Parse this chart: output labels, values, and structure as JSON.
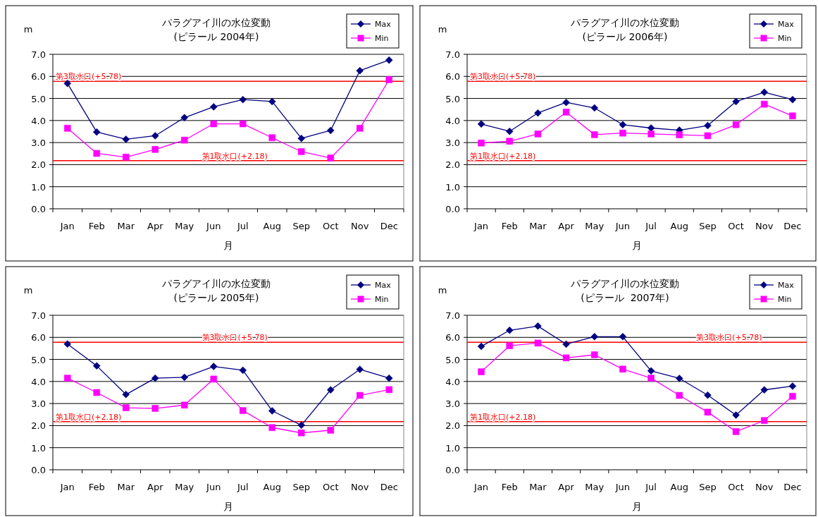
{
  "chart_data": [
    {
      "type": "line",
      "title": "パラグアイ川の水位変動",
      "subtitle": "(ピラール 2004年)",
      "xlabel": "月",
      "ylabel": "m",
      "categories": [
        "Jan",
        "Feb",
        "Mar",
        "Apr",
        "May",
        "Jun",
        "Jul",
        "Aug",
        "Sep",
        "Oct",
        "Nov",
        "Dec"
      ],
      "series": [
        {
          "name": "Max",
          "color": "#000080",
          "marker": "diamond",
          "values": [
            5.68,
            3.48,
            3.15,
            3.31,
            4.13,
            4.62,
            4.95,
            4.86,
            3.19,
            3.55,
            6.26,
            6.74
          ]
        },
        {
          "name": "Min",
          "color": "#ff00ff",
          "marker": "square",
          "values": [
            3.65,
            2.51,
            2.34,
            2.69,
            3.11,
            3.85,
            3.85,
            3.22,
            2.59,
            2.3,
            3.65,
            5.85
          ]
        }
      ],
      "ylim": [
        0,
        7
      ],
      "yticks": [
        {
          "value": 0,
          "label": "0.0"
        },
        {
          "value": 1,
          "label": "1.0"
        },
        {
          "value": 2,
          "label": "2.0"
        },
        {
          "value": 3,
          "label": "3.0"
        },
        {
          "value": 4,
          "label": "4.0"
        },
        {
          "value": 5,
          "label": "5.0"
        },
        {
          "value": 6,
          "label": "6.0"
        },
        {
          "value": 7,
          "label": "7.0"
        }
      ],
      "grid": "y",
      "legend": "top right",
      "ref_lines": [
        {
          "axis": "y",
          "value": 5.78,
          "label": "第3取水口(+5.78)",
          "color": "#ff0000"
        },
        {
          "axis": "y",
          "value": 2.18,
          "label": "第1取水口(+2.18)",
          "color": "#ff0000"
        }
      ]
    },
    {
      "type": "line",
      "title": "パラグアイ川の水位変動",
      "subtitle": "(ピラール 2006年)",
      "xlabel": "月",
      "ylabel": "m",
      "categories": [
        "Jan",
        "Feb",
        "Mar",
        "Apr",
        "May",
        "Jun",
        "Jul",
        "Aug",
        "Sep",
        "Oct",
        "Nov",
        "Dec"
      ],
      "series": [
        {
          "name": "Max",
          "color": "#000080",
          "marker": "diamond",
          "values": [
            3.84,
            3.51,
            4.34,
            4.82,
            4.57,
            3.81,
            3.66,
            3.56,
            3.77,
            4.86,
            5.28,
            4.95
          ]
        },
        {
          "name": "Min",
          "color": "#ff00ff",
          "marker": "square",
          "values": [
            2.98,
            3.06,
            3.39,
            4.38,
            3.36,
            3.43,
            3.39,
            3.35,
            3.31,
            3.81,
            4.74,
            4.21
          ]
        }
      ],
      "ylim": [
        0,
        7
      ],
      "yticks": [
        {
          "value": 0,
          "label": "0.0"
        },
        {
          "value": 1,
          "label": "1.0"
        },
        {
          "value": 2,
          "label": "2.0"
        },
        {
          "value": 3,
          "label": "3.0"
        },
        {
          "value": 4,
          "label": "4.0"
        },
        {
          "value": 5,
          "label": "5.0"
        },
        {
          "value": 6,
          "label": "6.0"
        },
        {
          "value": 7,
          "label": "7.0"
        }
      ],
      "grid": "y",
      "legend": "top right",
      "ref_lines": [
        {
          "axis": "y",
          "value": 5.78,
          "label": "第3取水口(+5.78)",
          "color": "#ff0000"
        },
        {
          "axis": "y",
          "value": 2.18,
          "label": "第1取水口(+2.18)",
          "color": "#ff0000"
        }
      ]
    },
    {
      "type": "line",
      "title": "パラグアイ川の水位変動",
      "subtitle": "(ピラール 2005年)",
      "xlabel": "月",
      "ylabel": "m",
      "categories": [
        "Jan",
        "Feb",
        "Mar",
        "Apr",
        "May",
        "Jun",
        "Jul",
        "Aug",
        "Sep",
        "Oct",
        "Nov",
        "Dec"
      ],
      "series": [
        {
          "name": "Max",
          "color": "#000080",
          "marker": "diamond",
          "values": [
            5.7,
            4.71,
            3.41,
            4.15,
            4.19,
            4.68,
            4.51,
            2.67,
            2.02,
            3.62,
            4.55,
            4.15
          ]
        },
        {
          "name": "Min",
          "color": "#ff00ff",
          "marker": "square",
          "values": [
            4.15,
            3.5,
            2.81,
            2.78,
            2.93,
            4.11,
            2.68,
            1.91,
            1.67,
            1.79,
            3.37,
            3.63
          ]
        }
      ],
      "ylim": [
        0,
        7
      ],
      "yticks": [
        {
          "value": 0,
          "label": "0.0"
        },
        {
          "value": 1,
          "label": "1.0"
        },
        {
          "value": 2,
          "label": "2.0"
        },
        {
          "value": 3,
          "label": "3.0"
        },
        {
          "value": 4,
          "label": "4.0"
        },
        {
          "value": 5,
          "label": "5.0"
        },
        {
          "value": 6,
          "label": "6.0"
        },
        {
          "value": 7,
          "label": "7.0"
        }
      ],
      "grid": "y",
      "legend": "top right",
      "ref_lines": [
        {
          "axis": "y",
          "value": 5.78,
          "label": "第3取水口(+5.78)",
          "color": "#ff0000"
        },
        {
          "axis": "y",
          "value": 2.18,
          "label": "第1取水口(+2.18)",
          "color": "#ff0000"
        }
      ]
    },
    {
      "type": "line",
      "title": "パラグアイ川の水位変動",
      "subtitle": "(ピラール  2007年)",
      "xlabel": "月",
      "ylabel": "m",
      "categories": [
        "Jan",
        "Feb",
        "Mar",
        "Apr",
        "May",
        "Jun",
        "Jul",
        "Aug",
        "Sep",
        "Oct",
        "Nov",
        "Dec"
      ],
      "series": [
        {
          "name": "Max",
          "color": "#000080",
          "marker": "diamond",
          "values": [
            5.59,
            6.32,
            6.51,
            5.69,
            6.03,
            6.03,
            4.48,
            4.14,
            3.38,
            2.48,
            3.62,
            3.79
          ]
        },
        {
          "name": "Min",
          "color": "#ff00ff",
          "marker": "square",
          "values": [
            4.44,
            5.62,
            5.74,
            5.07,
            5.21,
            4.56,
            4.15,
            3.37,
            2.61,
            1.73,
            2.23,
            3.33
          ]
        }
      ],
      "ylim": [
        0,
        7
      ],
      "yticks": [
        {
          "value": 0,
          "label": "0.0"
        },
        {
          "value": 1,
          "label": "1.0"
        },
        {
          "value": 2,
          "label": "2.0"
        },
        {
          "value": 3,
          "label": "3.0"
        },
        {
          "value": 4,
          "label": "4.0"
        },
        {
          "value": 5,
          "label": "5.0"
        },
        {
          "value": 6,
          "label": "6.0"
        },
        {
          "value": 7,
          "label": "7.0"
        }
      ],
      "grid": "y",
      "legend": "top right",
      "ref_lines": [
        {
          "axis": "y",
          "value": 5.78,
          "label": "第3取水口(+5.78)",
          "color": "#ff0000"
        },
        {
          "axis": "y",
          "value": 2.18,
          "label": "第1取水口(+2.18)",
          "color": "#ff0000"
        }
      ]
    }
  ]
}
